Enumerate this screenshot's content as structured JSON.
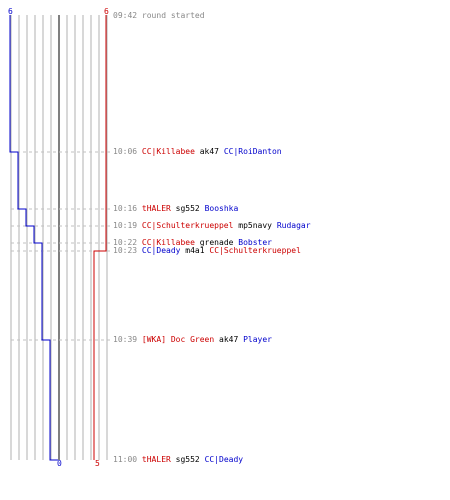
{
  "colors": {
    "team_a": "#0000cc",
    "team_b": "#cc0000",
    "grid": "#b0b0b0",
    "center_line": "#808080",
    "dash": "#c0c0c0",
    "time_text": "#888888"
  },
  "scores": {
    "team_a_start": "6",
    "team_b_start": "6",
    "team_a_end": "0",
    "team_b_end": "5"
  },
  "team_a_steps": [
    6,
    6,
    5,
    4,
    3,
    3,
    2,
    2,
    1,
    1,
    0
  ],
  "team_b_steps": [
    6,
    6,
    6,
    6,
    6,
    5,
    5,
    5,
    5,
    5,
    5
  ],
  "events": [
    {
      "time": "09:42",
      "type": "info",
      "text": "round started"
    },
    {
      "time": "10:06",
      "killer": "CC|Killabee",
      "killer_team": "b",
      "weapon": "ak47",
      "victim": "CC|RoiDanton",
      "victim_team": "a"
    },
    {
      "time": "10:16",
      "killer": "tHALER",
      "killer_team": "b",
      "weapon": "sg552",
      "victim": "Booshka",
      "victim_team": "a"
    },
    {
      "time": "10:19",
      "killer": "CC|Schulterkrueppel",
      "killer_team": "b",
      "weapon": "mp5navy",
      "victim": "Rudagar",
      "victim_team": "a"
    },
    {
      "time": "10:22",
      "killer": "CC|Killabee",
      "killer_team": "b",
      "weapon": "grenade",
      "victim": "Bobster",
      "victim_team": "a"
    },
    {
      "time": "10:23",
      "killer": "CC|Deady",
      "killer_team": "a",
      "weapon": "m4a1",
      "victim": "CC|Schulterkrueppel",
      "victim_team": "b"
    },
    {
      "time": "10:39",
      "killer": "[WKA] Doc Green",
      "killer_team": "b",
      "weapon": "ak47",
      "victim": "Player",
      "victim_team": "a"
    },
    {
      "time": "11:00",
      "killer": "tHALER",
      "killer_team": "b",
      "weapon": "sg552",
      "victim": "CC|Deady",
      "victim_team": "a"
    }
  ]
}
